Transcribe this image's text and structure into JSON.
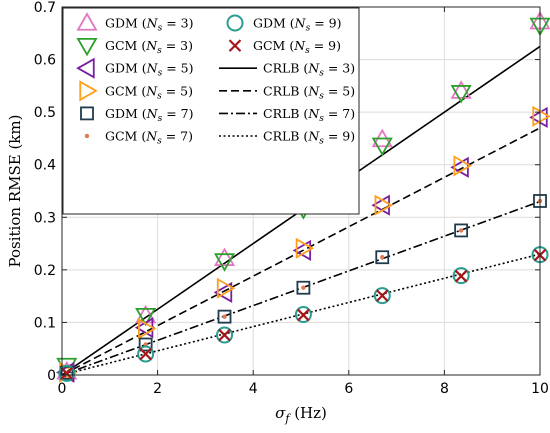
{
  "chart_data": {
    "type": "line",
    "xlabel": "σ_f (Hz)",
    "ylabel": "Position RMSE (km)",
    "xlim": [
      0,
      10
    ],
    "ylim": [
      0,
      0.7
    ],
    "xticks": [
      0,
      2,
      4,
      6,
      8,
      10
    ],
    "yticks": [
      0,
      0.1,
      0.2,
      0.3,
      0.4,
      0.5,
      0.6,
      0.7
    ],
    "grid": true,
    "legend_position": "top-left",
    "x": [
      0.1,
      1.75,
      3.4,
      5.05,
      6.7,
      8.35,
      10
    ],
    "series": [
      {
        "name": "GDM (N_s = 3)",
        "style": "marker",
        "marker": "triangle-up",
        "color": "#e377c2",
        "values": [
          0.006,
          0.113,
          0.222,
          0.32,
          0.448,
          0.54,
          0.672
        ]
      },
      {
        "name": "GCM (N_s = 3)",
        "style": "marker",
        "marker": "triangle-down",
        "color": "#2ca02c",
        "values": [
          0.018,
          0.113,
          0.217,
          0.316,
          0.437,
          0.537,
          0.665
        ]
      },
      {
        "name": "GDM (N_s = 5)",
        "style": "marker",
        "marker": "triangle-left",
        "color": "#7b1fa2",
        "values": [
          0.005,
          0.09,
          0.157,
          0.237,
          0.323,
          0.395,
          0.49
        ]
      },
      {
        "name": "GCM (N_s = 5)",
        "style": "marker",
        "marker": "triangle-right",
        "color": "#ff9f1c",
        "values": [
          0.005,
          0.088,
          0.165,
          0.241,
          0.323,
          0.398,
          0.492
        ]
      },
      {
        "name": "GDM (N_s = 7)",
        "style": "marker",
        "marker": "square",
        "color": "#1f3b4d",
        "values": [
          0.004,
          0.058,
          0.111,
          0.166,
          0.224,
          0.275,
          0.331
        ]
      },
      {
        "name": "GCM (N_s = 7)",
        "style": "marker",
        "marker": "dot",
        "color": "#e07b53",
        "values": [
          0.004,
          0.058,
          0.111,
          0.166,
          0.224,
          0.275,
          0.331
        ]
      },
      {
        "name": "GDM (N_s = 9)",
        "style": "marker",
        "marker": "circle",
        "color": "#2a9d8f",
        "values": [
          0.003,
          0.04,
          0.076,
          0.115,
          0.151,
          0.189,
          0.229
        ]
      },
      {
        "name": "GCM (N_s = 9)",
        "style": "marker",
        "marker": "x",
        "color": "#a4161a",
        "values": [
          0.003,
          0.04,
          0.076,
          0.114,
          0.151,
          0.188,
          0.228
        ]
      },
      {
        "name": "CRLB (N_s = 3)",
        "style": "line",
        "dash": "solid",
        "color": "#000000",
        "line_x": [
          0,
          10
        ],
        "line_y": [
          0,
          0.625
        ]
      },
      {
        "name": "CRLB (N_s = 5)",
        "style": "line",
        "dash": "dashed",
        "color": "#000000",
        "line_x": [
          0,
          10
        ],
        "line_y": [
          0,
          0.47
        ]
      },
      {
        "name": "CRLB (N_s = 7)",
        "style": "line",
        "dash": "dashdot",
        "color": "#000000",
        "line_x": [
          0,
          10
        ],
        "line_y": [
          0,
          0.33
        ]
      },
      {
        "name": "CRLB (N_s = 9)",
        "style": "line",
        "dash": "dotted",
        "color": "#000000",
        "line_x": [
          0,
          10
        ],
        "line_y": [
          0,
          0.23
        ]
      }
    ],
    "legend_order": [
      0,
      6,
      1,
      7,
      2,
      8,
      3,
      9,
      4,
      10,
      5,
      11
    ]
  }
}
